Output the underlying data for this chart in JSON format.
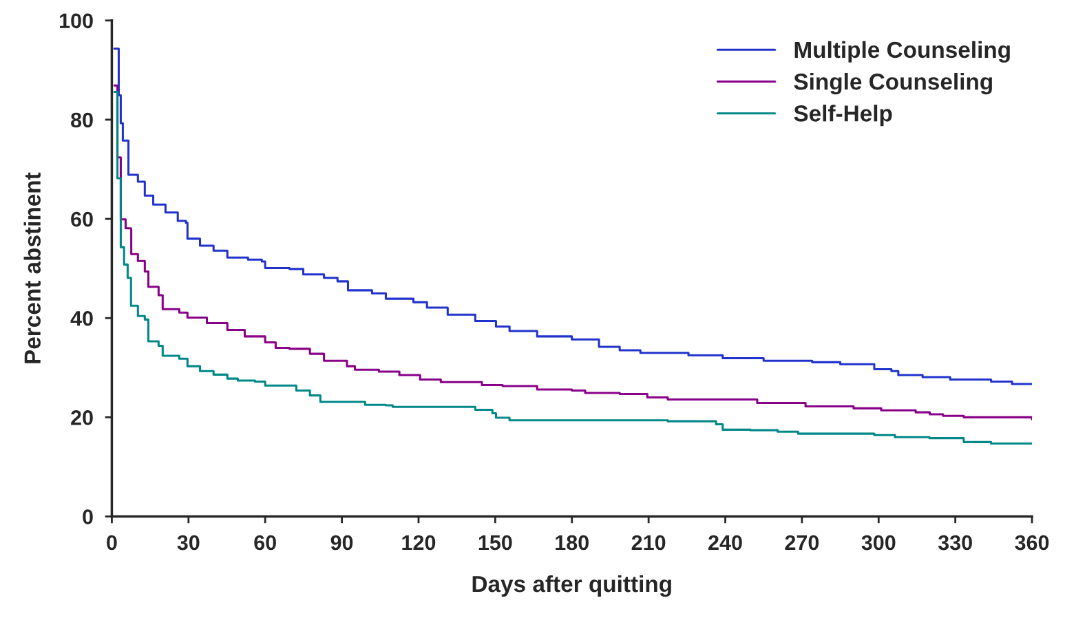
{
  "chart_data": {
    "type": "step",
    "xlabel": "Days after quitting",
    "ylabel": "Percent abstinent",
    "xlim": [
      0,
      360
    ],
    "ylim": [
      0,
      100
    ],
    "xticks": [
      0,
      30,
      60,
      90,
      120,
      150,
      180,
      210,
      240,
      270,
      300,
      330,
      360
    ],
    "yticks": [
      0,
      20,
      40,
      60,
      80,
      100
    ],
    "grid": false,
    "legend": "top right",
    "marker": "none",
    "line_style": "solid",
    "series": [
      {
        "name": "Multiple Counseling",
        "color": "#2233cc",
        "x": [
          1,
          2.7,
          3.5,
          4.3,
          6.5,
          10.2,
          12.9,
          16.2,
          21,
          25.8,
          29,
          29.6,
          34.5,
          39.8,
          45.2,
          53.3,
          58.7,
          60,
          69.5,
          74.9,
          83,
          88.3,
          92.4,
          101.8,
          107.2,
          118,
          123.3,
          131.4,
          142.2,
          150.3,
          155.6,
          166.4,
          180,
          190.6,
          198.7,
          206.8,
          217.5,
          225.6,
          239,
          255,
          274,
          285,
          298.3,
          305,
          307.7,
          317.2,
          328,
          344,
          352.2,
          360
        ],
        "values": [
          94.3,
          84.9,
          79.3,
          75.8,
          68.9,
          67.5,
          64.7,
          62.9,
          61.3,
          59.6,
          59.2,
          56,
          54.6,
          53.6,
          52.2,
          51.8,
          51.4,
          50.1,
          49.9,
          48.8,
          48.1,
          47.4,
          45.6,
          45,
          43.9,
          43.2,
          42.1,
          40.7,
          39.4,
          38.3,
          37.4,
          36.3,
          35.7,
          34.2,
          33.5,
          33,
          33,
          32.5,
          31.9,
          31.4,
          31.1,
          30.7,
          29.7,
          29.3,
          28.5,
          28.1,
          27.6,
          27.2,
          26.7,
          26.7
        ]
      },
      {
        "name": "Single Counseling",
        "color": "#880088",
        "x": [
          1,
          2.2,
          3.5,
          5.4,
          7.5,
          7.6,
          10.2,
          12.9,
          14.3,
          18.3,
          19.9,
          26.4,
          29.6,
          37.2,
          45.2,
          52,
          60,
          64.1,
          69.5,
          77.5,
          83,
          92,
          95.1,
          104.5,
          112.5,
          120.6,
          128.7,
          144.8,
          152.9,
          166.4,
          180,
          185.2,
          198.7,
          209.5,
          217.5,
          247,
          252.5,
          268.5,
          271.4,
          282.1,
          290.2,
          301,
          314.5,
          320,
          325.2,
          333.3,
          357.4,
          360
        ],
        "values": [
          86.9,
          72.4,
          59.9,
          58.1,
          57.8,
          52.9,
          51.5,
          49.4,
          46.3,
          44.6,
          41.8,
          41.1,
          40.1,
          39,
          37.6,
          36.3,
          35.1,
          34,
          33.8,
          32.8,
          31.4,
          30.3,
          29.6,
          29.2,
          28.5,
          27.6,
          27.1,
          26.5,
          26.3,
          25.6,
          25.4,
          24.9,
          24.7,
          24,
          23.6,
          23.6,
          22.9,
          22.9,
          22.2,
          22.2,
          21.8,
          21.4,
          21,
          20.6,
          20.3,
          20,
          20,
          19.6
        ]
      },
      {
        "name": "Self-Help",
        "color": "#008888",
        "x": [
          1,
          2.2,
          3.5,
          4.8,
          6.2,
          7.5,
          10.2,
          12.9,
          14.3,
          18.3,
          19.9,
          26.4,
          29.6,
          34.5,
          39.8,
          45.2,
          49.3,
          56,
          60,
          66.8,
          72.2,
          77.5,
          81.6,
          93.7,
          99.1,
          107.2,
          109.9,
          134.1,
          142.2,
          148.9,
          150.3,
          155.6,
          214.9,
          217.5,
          236.4,
          239,
          249.8,
          260.5,
          268.5,
          282.1,
          298.3,
          306.4,
          319.9,
          333.3,
          344,
          360
        ],
        "values": [
          85.6,
          68.2,
          54.3,
          50.8,
          48.1,
          42.5,
          40.4,
          39.7,
          35.3,
          34.4,
          32.4,
          31.8,
          30.3,
          29.3,
          28.6,
          27.8,
          27.4,
          27.2,
          26.4,
          26.4,
          25.4,
          24.4,
          23.1,
          23.1,
          22.5,
          22.4,
          22.1,
          22.1,
          21.5,
          20.8,
          19.9,
          19.4,
          19.4,
          19.2,
          18.6,
          17.5,
          17.4,
          17.1,
          16.7,
          16.7,
          16.4,
          16,
          15.8,
          15,
          14.7,
          14.7
        ]
      }
    ]
  }
}
